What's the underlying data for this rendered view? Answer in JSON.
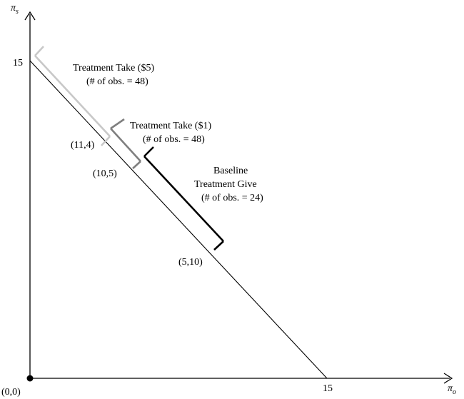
{
  "axes": {
    "y_label": "π",
    "y_sub": "s",
    "x_label": "π",
    "x_sub": "o",
    "origin_label": "(0,0)",
    "x_tick_label": "15",
    "y_tick_label": "15"
  },
  "points": {
    "p_11_4": "(11,4)",
    "p_10_5": "(10,5)",
    "p_5_10": "(5,10)"
  },
  "groups": {
    "take5": {
      "title": "Treatment Take ($5)",
      "obs": "(# of obs. = 48)",
      "color": "#c8c8c8"
    },
    "take1": {
      "title": "Treatment Take ($1)",
      "obs": "(# of obs. = 48)",
      "color": "#7f7f7f"
    },
    "give": {
      "title_line1": "Baseline",
      "title_line2": "Treatment Give",
      "obs": "(# of obs. = 24)",
      "color": "#000000"
    }
  }
}
